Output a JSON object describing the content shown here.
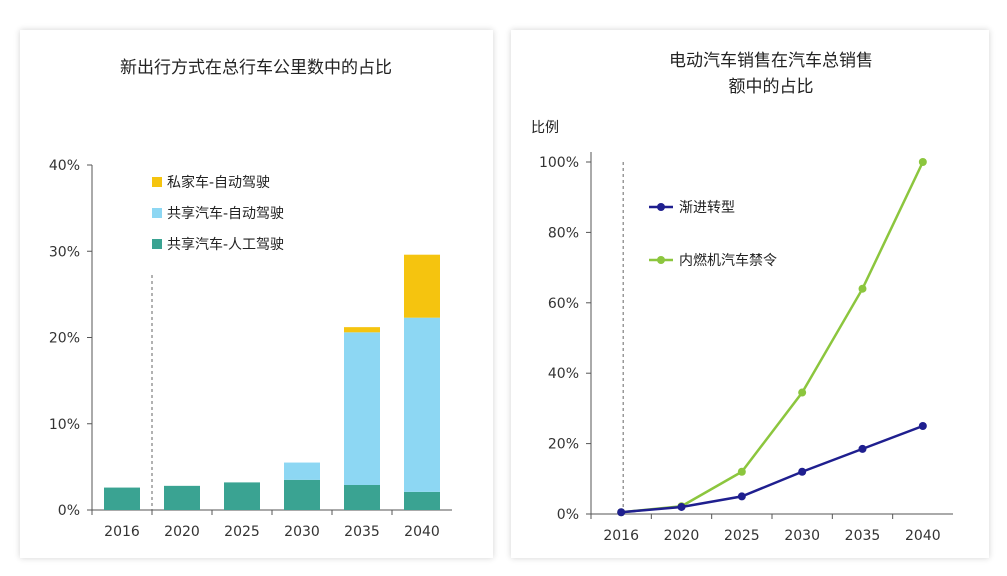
{
  "chart_data": [
    {
      "type": "bar",
      "stacked": true,
      "title": "新出行方式在总行车公里数中的占比",
      "categories": [
        "2016",
        "2020",
        "2025",
        "2030",
        "2035",
        "2040"
      ],
      "series": [
        {
          "name": "共享汽车-人工驾驶",
          "color": "#3aa392",
          "values": [
            2.6,
            2.8,
            3.2,
            3.5,
            2.9,
            2.1
          ]
        },
        {
          "name": "共享汽车-自动驾驶",
          "color": "#8dd7f3",
          "values": [
            0,
            0,
            0,
            2.0,
            17.7,
            20.2
          ]
        },
        {
          "name": "私家车-自动驾驶",
          "color": "#f5c40f",
          "values": [
            0,
            0,
            0,
            0,
            0.6,
            7.3
          ]
        }
      ],
      "legend_order": [
        "私家车-自动驾驶",
        "共享汽车-自动驾驶",
        "共享汽车-人工驾驶"
      ],
      "yticks": [
        "0%",
        "10%",
        "20%",
        "30%",
        "40%"
      ],
      "ylim": [
        0,
        40
      ],
      "legend": "top-left",
      "grid": false
    },
    {
      "type": "line",
      "title_lines": [
        "电动汽车销售在汽车总销售",
        "额中的占比"
      ],
      "ylabel": "比例",
      "x": [
        "2016",
        "2020",
        "2025",
        "2030",
        "2035",
        "2040"
      ],
      "series": [
        {
          "name": "渐进转型",
          "color": "#1f1f8f",
          "values": [
            0.5,
            2,
            5,
            12,
            18.5,
            25
          ]
        },
        {
          "name": "内燃机汽车禁令",
          "color": "#8cc63e",
          "values": [
            0.5,
            2.2,
            12,
            34.5,
            64,
            100
          ]
        }
      ],
      "yticks": [
        "0%",
        "20%",
        "40%",
        "60%",
        "80%",
        "100%"
      ],
      "ylim": [
        0,
        100
      ],
      "legend": "top-left",
      "grid": false
    }
  ]
}
